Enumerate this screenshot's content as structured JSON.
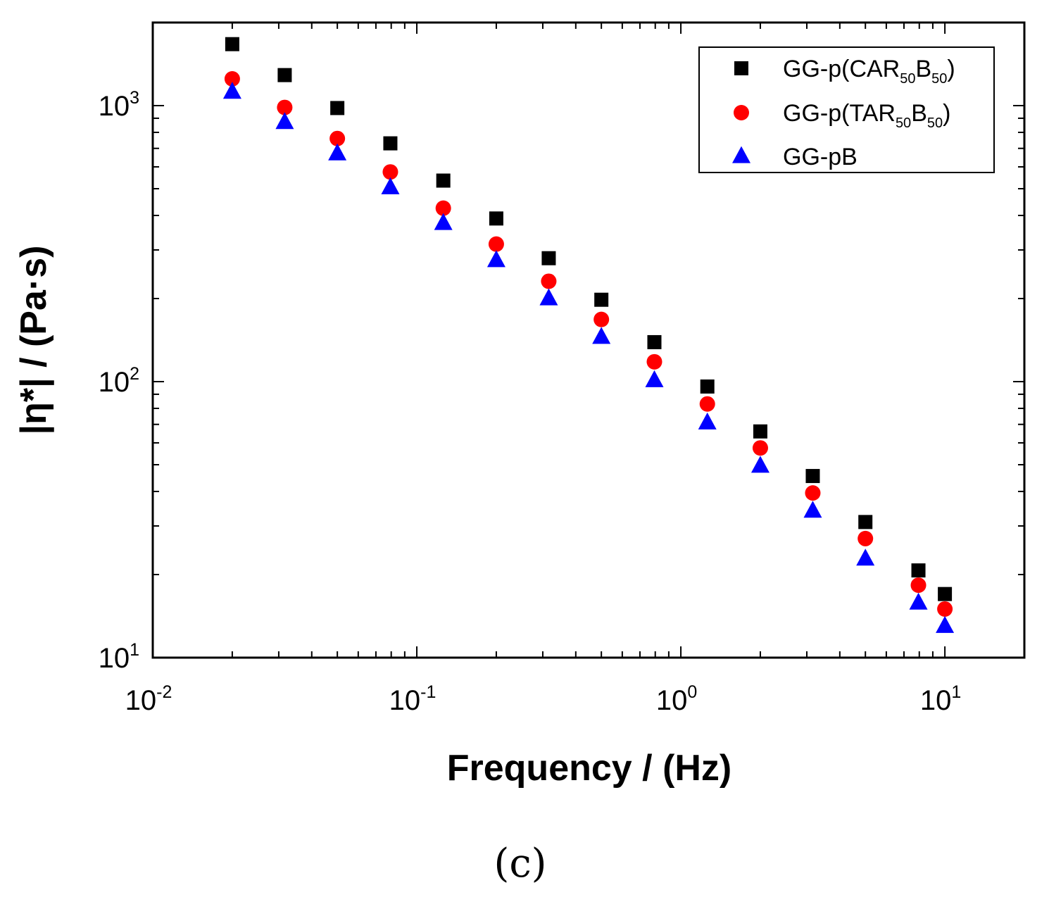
{
  "chart_data": {
    "type": "scatter",
    "title": "",
    "xlabel": "Frequency / (Hz)",
    "ylabel": "|η*| / (Pa·s)",
    "x_scale": "log",
    "y_scale": "log",
    "xlim": [
      0.01,
      20
    ],
    "ylim": [
      10,
      2000
    ],
    "grid": false,
    "legend_position": "top-right",
    "x_ticks": [
      {
        "base": "10",
        "exp": "-2"
      },
      {
        "base": "10",
        "exp": "-1"
      },
      {
        "base": "10",
        "exp": "0"
      },
      {
        "base": "10",
        "exp": "1"
      }
    ],
    "y_ticks": [
      {
        "base": "10",
        "exp": "1"
      },
      {
        "base": "10",
        "exp": "2"
      },
      {
        "base": "10",
        "exp": "3"
      }
    ],
    "x": [
      0.02,
      0.0316,
      0.05,
      0.0794,
      0.126,
      0.2,
      0.316,
      0.5,
      0.794,
      1.26,
      2.0,
      3.16,
      5.0,
      7.94,
      10.0
    ],
    "series": [
      {
        "name": "GG-p(CAR50B50)",
        "label_parts": {
          "a": "GG-p(CAR",
          "s1": "50",
          "b": "B",
          "s2": "50",
          "c": ")"
        },
        "marker": "square",
        "color": "#000000",
        "values": [
          1670,
          1290,
          980,
          730,
          535,
          390,
          280,
          198,
          139,
          96,
          66,
          45.5,
          31,
          20.7,
          17
        ]
      },
      {
        "name": "GG-p(TAR50B50)",
        "label_parts": {
          "a": "GG-p(TAR",
          "s1": "50",
          "b": "B",
          "s2": "50",
          "c": ")"
        },
        "marker": "circle",
        "color": "#ff0000",
        "values": [
          1250,
          985,
          760,
          575,
          425,
          315,
          231,
          168,
          118,
          83,
          57.5,
          39.5,
          27,
          18.3,
          15
        ]
      },
      {
        "name": "GG-pB",
        "label_parts": {
          "a": "GG-pB",
          "s1": "",
          "b": "",
          "s2": "",
          "c": ""
        },
        "marker": "triangle",
        "color": "#0000ff",
        "values": [
          1120,
          870,
          670,
          505,
          375,
          275,
          200,
          145,
          101,
          71,
          49.5,
          34,
          22.8,
          15.8,
          13
        ]
      }
    ]
  },
  "panel_label": "(c)"
}
